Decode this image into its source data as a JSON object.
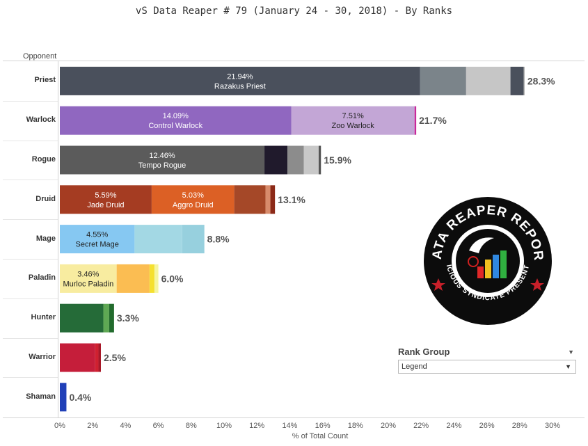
{
  "chart_data": {
    "type": "bar",
    "orientation": "horizontal",
    "stacked": true,
    "title": "vS Data Reaper #  79 (January 24 - 30, 2018) - By Ranks",
    "ylabel": "Opponent",
    "xlabel": "% of Total Count",
    "xlim": [
      0,
      30
    ],
    "x_ticks": [
      "0%",
      "2%",
      "4%",
      "6%",
      "8%",
      "10%",
      "12%",
      "14%",
      "16%",
      "18%",
      "20%",
      "22%",
      "24%",
      "26%",
      "28%",
      "30%"
    ],
    "categories": [
      {
        "name": "Priest",
        "total": 28.3,
        "total_label": "28.3%",
        "segments": [
          {
            "value": 21.94,
            "color": "#4a505c",
            "label_pct": "21.94%",
            "label_name": "Razakus Priest"
          },
          {
            "value": 2.8,
            "color": "#7b848a"
          },
          {
            "value": 2.7,
            "color": "#c6c6c6"
          },
          {
            "value": 0.8,
            "color": "#4a505c"
          },
          {
            "value": 0.06,
            "color": "#aaaaaa"
          }
        ]
      },
      {
        "name": "Warlock",
        "total": 21.7,
        "total_label": "21.7%",
        "segments": [
          {
            "value": 14.09,
            "color": "#9067c0",
            "label_pct": "14.09%",
            "label_name": "Control Warlock"
          },
          {
            "value": 7.51,
            "color": "#c3a6d6",
            "label_pct": "7.51%",
            "label_name": "Zoo Warlock",
            "dark_text": true
          },
          {
            "value": 0.1,
            "color": "#c9289a"
          }
        ]
      },
      {
        "name": "Rogue",
        "total": 15.9,
        "total_label": "15.9%",
        "segments": [
          {
            "value": 12.46,
            "color": "#5b5b5b",
            "label_pct": "12.46%",
            "label_name": "Tempo Rogue"
          },
          {
            "value": 1.4,
            "color": "#201a2c"
          },
          {
            "value": 1.0,
            "color": "#8c8c8c"
          },
          {
            "value": 0.9,
            "color": "#c8c8c8"
          },
          {
            "value": 0.14,
            "color": "#555555"
          }
        ]
      },
      {
        "name": "Druid",
        "total": 13.1,
        "total_label": "13.1%",
        "segments": [
          {
            "value": 5.59,
            "color": "#a53c22",
            "label_pct": "5.59%",
            "label_name": "Jade Druid"
          },
          {
            "value": 5.03,
            "color": "#dc6025",
            "label_pct": "5.03%",
            "label_name": "Aggro Druid"
          },
          {
            "value": 1.9,
            "color": "#a54828"
          },
          {
            "value": 0.3,
            "color": "#d88c6c"
          },
          {
            "value": 0.28,
            "color": "#8c2a18"
          }
        ]
      },
      {
        "name": "Mage",
        "total": 8.8,
        "total_label": "8.8%",
        "segments": [
          {
            "value": 4.55,
            "color": "#86c8f2",
            "label_pct": "4.55%",
            "label_name": "Secret Mage",
            "dark_text": true
          },
          {
            "value": 2.9,
            "color": "#a3d8e4"
          },
          {
            "value": 1.35,
            "color": "#97d0de"
          }
        ]
      },
      {
        "name": "Paladin",
        "total": 6.0,
        "total_label": "6.0%",
        "segments": [
          {
            "value": 3.46,
            "color": "#f8eca0",
            "label_pct": "3.46%",
            "label_name": "Murloc Paladin",
            "dark_text": true
          },
          {
            "value": 2.0,
            "color": "#fbbd52"
          },
          {
            "value": 0.3,
            "color": "#f5e030"
          },
          {
            "value": 0.24,
            "color": "#f5f5a0"
          }
        ]
      },
      {
        "name": "Hunter",
        "total": 3.3,
        "total_label": "3.3%",
        "segments": [
          {
            "value": 2.65,
            "color": "#256b38"
          },
          {
            "value": 0.35,
            "color": "#5fa854"
          },
          {
            "value": 0.3,
            "color": "#226b2d"
          }
        ]
      },
      {
        "name": "Warrior",
        "total": 2.5,
        "total_label": "2.5%",
        "segments": [
          {
            "value": 2.15,
            "color": "#c51e3a"
          },
          {
            "value": 0.2,
            "color": "#d02030"
          },
          {
            "value": 0.15,
            "color": "#a81828"
          }
        ]
      },
      {
        "name": "Shaman",
        "total": 0.4,
        "total_label": "0.4%",
        "segments": [
          {
            "value": 0.4,
            "color": "#2040b8"
          }
        ]
      }
    ]
  },
  "legend": {
    "title": "Rank Group",
    "selected": "Legend"
  },
  "logo": {
    "text_top": "DATA REAPER REPORT",
    "text_bottom": "VICIOUS SYNDICATE PRESENTS"
  }
}
